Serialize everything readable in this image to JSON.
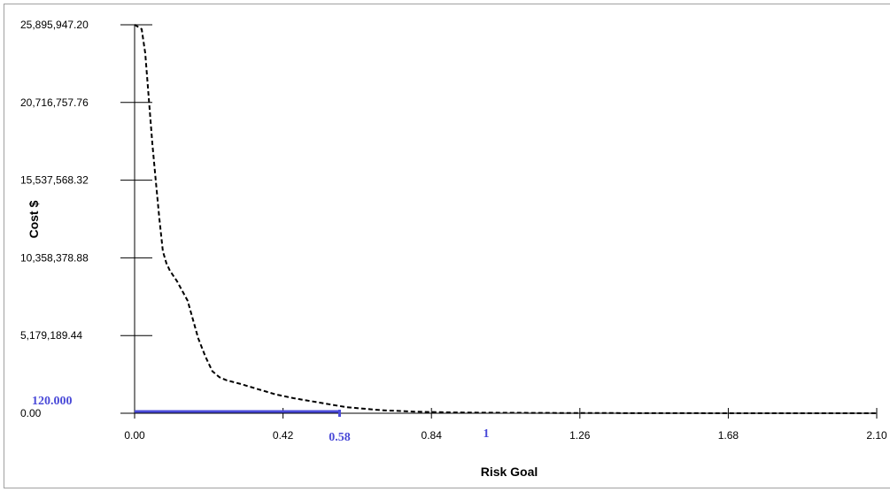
{
  "chart_data": {
    "type": "line",
    "xlabel": "Risk Goal",
    "ylabel": "Cost $",
    "xlim": [
      0,
      2.1
    ],
    "ylim": [
      0,
      25895947.2
    ],
    "x_ticks": [
      {
        "value": 0,
        "label": "0.00"
      },
      {
        "value": 0.42,
        "label": "0.42"
      },
      {
        "value": 0.84,
        "label": "0.84"
      },
      {
        "value": 1.26,
        "label": "1.26"
      },
      {
        "value": 1.68,
        "label": "1.68"
      },
      {
        "value": 2.1,
        "label": "2.10"
      }
    ],
    "y_ticks": [
      {
        "value": 0,
        "label": "0.00"
      },
      {
        "value": 5179189.44,
        "label": "5,179,189.44"
      },
      {
        "value": 10358378.88,
        "label": "10,358,378.88"
      },
      {
        "value": 15537568.32,
        "label": "15,537,568.32"
      },
      {
        "value": 20716757.76,
        "label": "20,716,757.76"
      },
      {
        "value": 25895947.2,
        "label": "25,895,947.20"
      }
    ],
    "grid": false,
    "series": [
      {
        "style": "dashed",
        "color": "#000000",
        "x": [
          0.0,
          0.02,
          0.03,
          0.04,
          0.05,
          0.06,
          0.07,
          0.08,
          0.09,
          0.1,
          0.12,
          0.15,
          0.18,
          0.2,
          0.22,
          0.24,
          0.26,
          0.3,
          0.35,
          0.4,
          0.45,
          0.5,
          0.55,
          0.6,
          0.7,
          0.8,
          0.9,
          1.0,
          1.2,
          1.5,
          1.8,
          2.1
        ],
        "y": [
          25900000,
          25600000,
          24000000,
          21000000,
          18000000,
          15500000,
          13000000,
          10800000,
          10000000,
          9500000,
          8800000,
          7500000,
          5000000,
          3800000,
          2800000,
          2400000,
          2200000,
          1950000,
          1600000,
          1250000,
          1000000,
          800000,
          600000,
          400000,
          200000,
          100000,
          55000,
          35000,
          15000,
          5000,
          1000,
          0
        ]
      }
    ],
    "highlight": {
      "color": "#4a4ad8",
      "x": 0.58,
      "y": 120000,
      "x_label": "0.58",
      "y_label": "120.000",
      "extra_label": "1",
      "extra_label_x": 1.0
    }
  }
}
